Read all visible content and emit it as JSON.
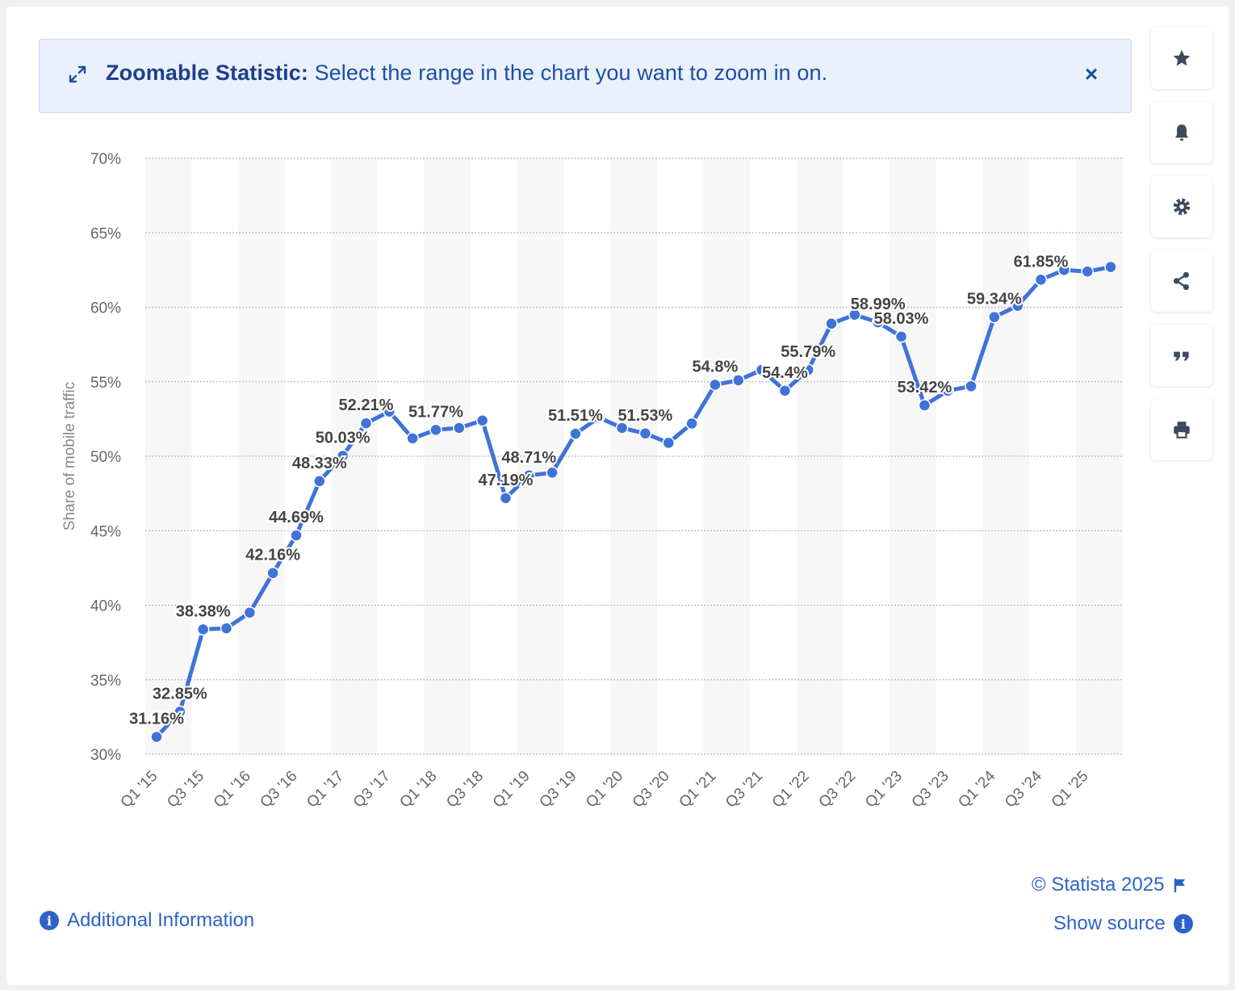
{
  "banner": {
    "title": "Zoomable Statistic:",
    "message": "Select the range in the chart you want to zoom in on.",
    "close_label": "×"
  },
  "toolbar": {
    "items": [
      {
        "icon": "star-icon"
      },
      {
        "icon": "bell-icon"
      },
      {
        "icon": "gear-icon"
      },
      {
        "icon": "share-icon"
      },
      {
        "icon": "quote-icon"
      },
      {
        "icon": "print-icon"
      }
    ]
  },
  "footer": {
    "copyright": "© Statista 2025",
    "show_source": "Show source",
    "additional_info": "Additional Information",
    "info_glyph": "i"
  },
  "colors": {
    "line": "#3f73d9",
    "accent": "#2d63c8",
    "label": "#444444",
    "axis_text": "#666666",
    "grid": "#b8b8b8",
    "band": "#f7f7f7"
  },
  "chart_data": {
    "type": "line",
    "ylabel": "Share of mobile traffic",
    "ylim": [
      30,
      70
    ],
    "yticks": [
      30,
      35,
      40,
      45,
      50,
      55,
      60,
      65,
      70
    ],
    "ytick_labels": [
      "30%",
      "35%",
      "40%",
      "45%",
      "50%",
      "55%",
      "60%",
      "65%",
      "70%"
    ],
    "grid": true,
    "x_tick_labels": [
      "Q1 '15",
      "Q3 '15",
      "Q1 '16",
      "Q3 '16",
      "Q1 '17",
      "Q3 '17",
      "Q1 '18",
      "Q3 '18",
      "Q1 '19",
      "Q3 '19",
      "Q1 '20",
      "Q3 '20",
      "Q1 '21",
      "Q3 '21",
      "Q1 '22",
      "Q3 '22",
      "Q1 '23",
      "Q3 '23",
      "Q1 '24",
      "Q3 '24",
      "Q1 '25"
    ],
    "series": [
      {
        "values": [
          31.16,
          32.85,
          38.38,
          38.45,
          39.5,
          42.16,
          44.69,
          48.33,
          50.03,
          52.21,
          53.0,
          51.2,
          51.77,
          51.9,
          52.4,
          47.19,
          48.71,
          48.9,
          51.51,
          52.6,
          51.9,
          51.53,
          50.9,
          52.2,
          54.8,
          55.1,
          55.79,
          54.4,
          55.79,
          58.9,
          59.5,
          58.99,
          58.03,
          53.42,
          54.4,
          54.7,
          59.34,
          60.1,
          61.85,
          62.5,
          62.4,
          62.7
        ],
        "data_labels": {
          "0": "31.16%",
          "1": "32.85%",
          "2": "38.38%",
          "5": "42.16%",
          "6": "44.69%",
          "7": "48.33%",
          "8": "50.03%",
          "9": "52.21%",
          "12": "51.77%",
          "15": "47.19%",
          "16": "48.71%",
          "18": "51.51%",
          "21": "51.53%",
          "24": "54.8%",
          "27": "54.4%",
          "28": "55.79%",
          "31": "58.99%",
          "32": "58.03%",
          "33": "53.42%",
          "36": "59.34%",
          "38": "61.85%"
        }
      }
    ]
  }
}
